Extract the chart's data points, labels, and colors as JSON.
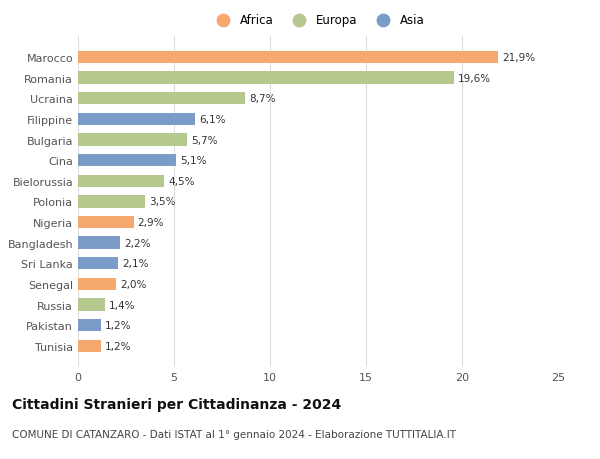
{
  "categories": [
    "Tunisia",
    "Pakistan",
    "Russia",
    "Senegal",
    "Sri Lanka",
    "Bangladesh",
    "Nigeria",
    "Polonia",
    "Bielorussia",
    "Cina",
    "Bulgaria",
    "Filippine",
    "Ucraina",
    "Romania",
    "Marocco"
  ],
  "values": [
    1.2,
    1.2,
    1.4,
    2.0,
    2.1,
    2.2,
    2.9,
    3.5,
    4.5,
    5.1,
    5.7,
    6.1,
    8.7,
    19.6,
    21.9
  ],
  "labels": [
    "1,2%",
    "1,2%",
    "1,4%",
    "2,0%",
    "2,1%",
    "2,2%",
    "2,9%",
    "3,5%",
    "4,5%",
    "5,1%",
    "5,7%",
    "6,1%",
    "8,7%",
    "19,6%",
    "21,9%"
  ],
  "continents": [
    "Africa",
    "Asia",
    "Europa",
    "Africa",
    "Asia",
    "Asia",
    "Africa",
    "Europa",
    "Europa",
    "Asia",
    "Europa",
    "Asia",
    "Europa",
    "Europa",
    "Africa"
  ],
  "colors": {
    "Africa": "#F5A96E",
    "Europa": "#B5C98E",
    "Asia": "#7B9CC7"
  },
  "legend_labels": [
    "Africa",
    "Europa",
    "Asia"
  ],
  "title": "Cittadini Stranieri per Cittadinanza - 2024",
  "subtitle": "COMUNE DI CATANZARO - Dati ISTAT al 1° gennaio 2024 - Elaborazione TUTTITALIA.IT",
  "xlim": [
    0,
    25
  ],
  "xticks": [
    0,
    5,
    10,
    15,
    20,
    25
  ],
  "background_color": "#ffffff",
  "grid_color": "#dddddd",
  "bar_height": 0.6,
  "title_fontsize": 10,
  "subtitle_fontsize": 7.5,
  "label_fontsize": 7.5,
  "tick_fontsize": 8,
  "legend_fontsize": 8.5
}
